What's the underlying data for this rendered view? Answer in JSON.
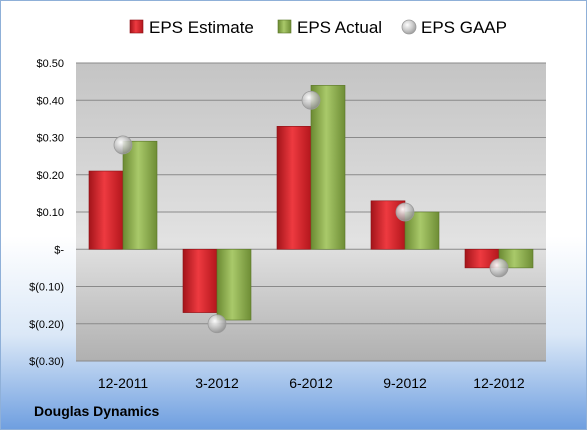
{
  "company": "Douglas Dynamics",
  "colors": {
    "estimate": "#d42027",
    "actual": "#8db04a",
    "gaap": "#b8b8b8"
  },
  "chart_data": {
    "type": "bar",
    "categories": [
      "12-2011",
      "3-2012",
      "6-2012",
      "9-2012",
      "12-2012"
    ],
    "series": [
      {
        "name": "EPS Estimate",
        "values": [
          0.21,
          -0.17,
          0.33,
          0.13,
          -0.05
        ]
      },
      {
        "name": "EPS Actual",
        "values": [
          0.29,
          -0.19,
          0.44,
          0.1,
          -0.05
        ]
      },
      {
        "name": "EPS GAAP",
        "values": [
          0.28,
          -0.2,
          0.4,
          0.1,
          -0.05
        ],
        "style": "marker"
      }
    ],
    "ylim": [
      -0.3,
      0.5
    ],
    "yticks": [
      0.5,
      0.4,
      0.3,
      0.2,
      0.1,
      0,
      -0.1,
      -0.2,
      -0.3
    ],
    "ytick_labels": [
      "$0.50",
      "$0.40",
      "$0.30",
      "$0.20",
      "$0.10",
      "$-",
      "$(0.10)",
      "$(0.20)",
      "$(0.30)"
    ],
    "grid": true,
    "legend": "top"
  }
}
